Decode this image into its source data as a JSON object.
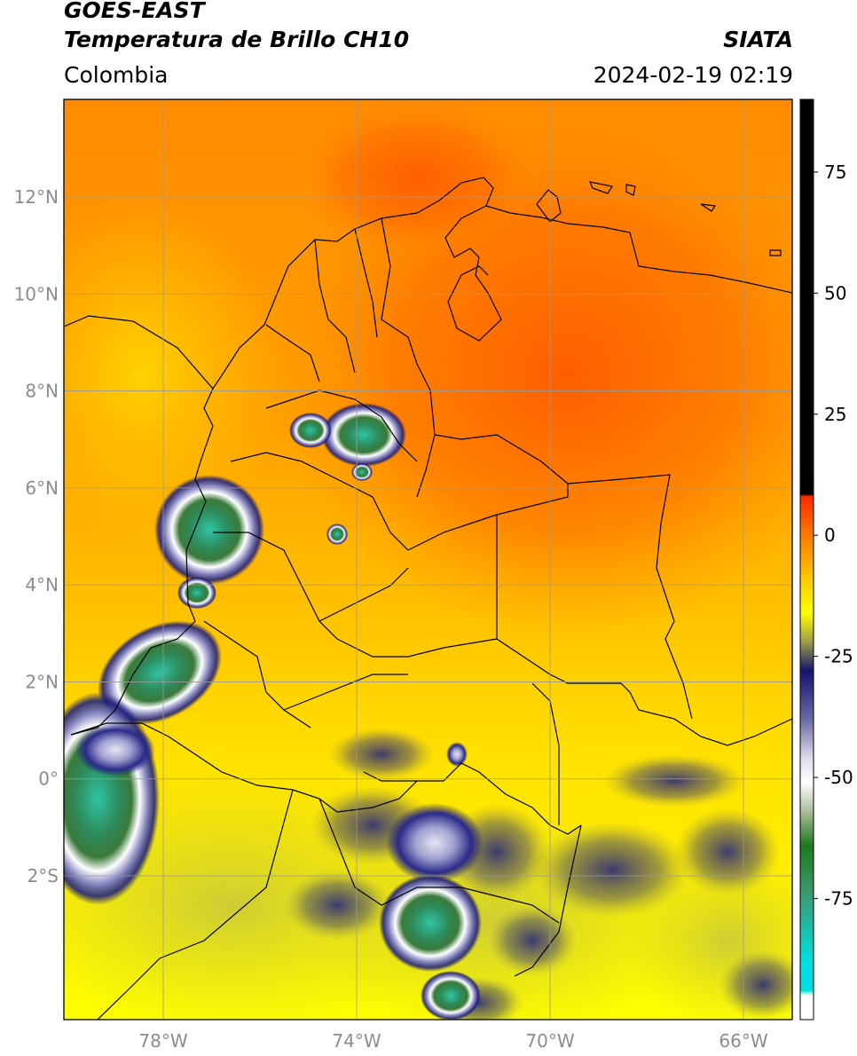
{
  "header": {
    "satellite": "GOES-EAST",
    "product": "Temperatura de Brillo CH10",
    "brand": "SIATA",
    "region": "Colombia",
    "datetime": "2024-02-19 02:19"
  },
  "map": {
    "lat_labels": [
      {
        "value": 12,
        "label": "12°N"
      },
      {
        "value": 10,
        "label": "10°N"
      },
      {
        "value": 8,
        "label": "8°N"
      },
      {
        "value": 6,
        "label": "6°N"
      },
      {
        "value": 4,
        "label": "4°N"
      },
      {
        "value": 2,
        "label": "2°N"
      },
      {
        "value": 0,
        "label": "0°"
      },
      {
        "value": -2,
        "label": "2°S"
      }
    ],
    "lon_labels": [
      {
        "value": -78,
        "label": "78°W"
      },
      {
        "value": -74,
        "label": "74°W"
      },
      {
        "value": -70,
        "label": "70°W"
      },
      {
        "value": -66,
        "label": "66°W"
      }
    ],
    "tick_color": "#8c8c8c",
    "gridline_color": "#9a9a9a"
  },
  "colorbar": {
    "ticks": [
      {
        "value": 75,
        "label": "75"
      },
      {
        "value": 50,
        "label": "50"
      },
      {
        "value": 25,
        "label": "25"
      },
      {
        "value": 0,
        "label": "0"
      },
      {
        "value": -25,
        "label": "-25"
      },
      {
        "value": -50,
        "label": "-50"
      },
      {
        "value": -75,
        "label": "-75"
      }
    ],
    "range": [
      -100,
      90
    ],
    "stops": [
      {
        "value": 90,
        "color": "#000000"
      },
      {
        "value": 8.5,
        "color": "#000000"
      },
      {
        "value": 8,
        "color": "#ff2a00"
      },
      {
        "value": 0,
        "color": "#ff7a00"
      },
      {
        "value": -10,
        "color": "#ffd200"
      },
      {
        "value": -16,
        "color": "#ffff00"
      },
      {
        "value": -22,
        "color": "#9d9d4a"
      },
      {
        "value": -28,
        "color": "#14146e"
      },
      {
        "value": -38,
        "color": "#6a6aa8"
      },
      {
        "value": -46,
        "color": "#dcdcea"
      },
      {
        "value": -51,
        "color": "#ffffff"
      },
      {
        "value": -58,
        "color": "#9ab38c"
      },
      {
        "value": -64,
        "color": "#1e7a1e"
      },
      {
        "value": -74,
        "color": "#3a9a6e"
      },
      {
        "value": -88,
        "color": "#00e0e0"
      },
      {
        "value": -94,
        "color": "#00e0e0"
      },
      {
        "value": -95,
        "color": "#ffffff"
      },
      {
        "value": -100,
        "color": "#ffffff"
      }
    ]
  }
}
